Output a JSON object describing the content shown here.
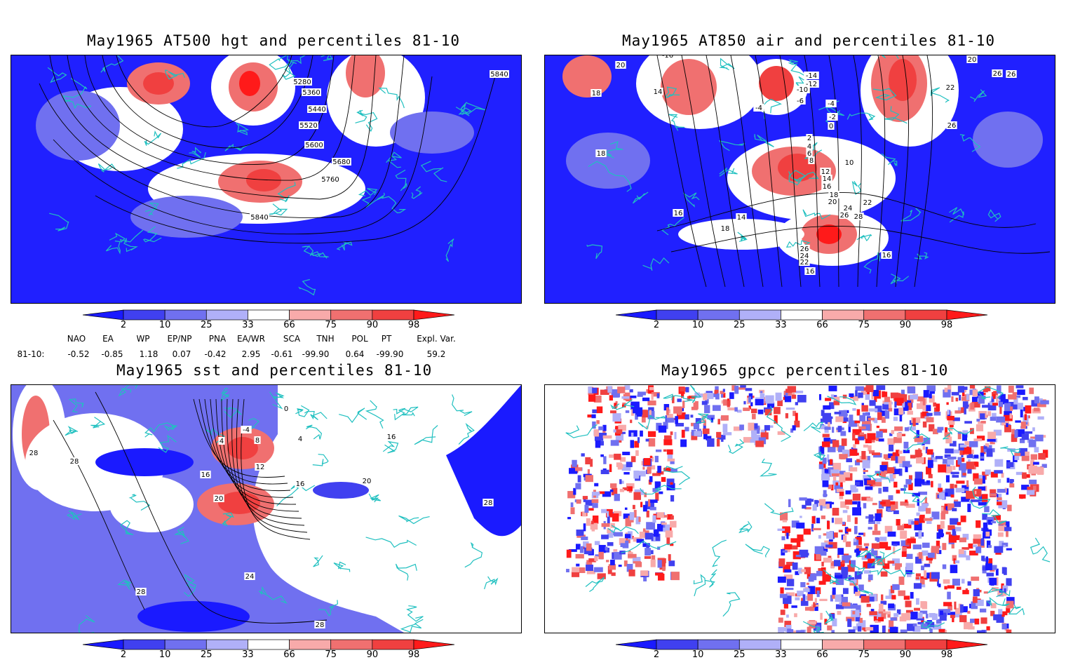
{
  "panels": [
    {
      "id": "hgt",
      "title": "May1965 AT500 hgt and percentiles 81-10",
      "contour_labels": [
        "5280",
        "5360",
        "5440",
        "5520",
        "5600",
        "5680",
        "5760",
        "5840",
        "5840"
      ]
    },
    {
      "id": "air",
      "title": "May1965 AT850 air and percentiles 81-10",
      "contour_labels": [
        "-16",
        "20",
        "18",
        "14",
        "18",
        "16",
        "14",
        "18",
        "16",
        "-4",
        "-14",
        "-12",
        "-10",
        "-6",
        "-4",
        "-2",
        "0",
        "2",
        "4",
        "6",
        "8",
        "10",
        "12",
        "14",
        "16",
        "18",
        "20",
        "22",
        "24",
        "26",
        "28",
        "26",
        "24",
        "22",
        "16",
        "20",
        "26",
        "22",
        "26",
        "26",
        "18"
      ]
    },
    {
      "id": "sst",
      "title": "May1965 sst and percentiles 81-10",
      "contour_labels": [
        "28",
        "28",
        "0",
        "4",
        "8",
        "-4",
        "12",
        "16",
        "16",
        "20",
        "20",
        "24",
        "28",
        "28",
        "16",
        "4",
        "28"
      ]
    },
    {
      "id": "gpcc",
      "title": "May1965 gpcc percentiles 81-10",
      "contour_labels": []
    }
  ],
  "colorbar": {
    "labels": [
      "2",
      "10",
      "25",
      "33",
      "66",
      "75",
      "90",
      "98"
    ],
    "colors": [
      "#1a1aff",
      "#4040f0",
      "#7070f0",
      "#b0b0f8",
      "#ffffff",
      "#f8aaaa",
      "#f07070",
      "#f04040",
      "#ff1a1a"
    ]
  },
  "indices": {
    "headers": [
      "NAO",
      "EA",
      "WP",
      "EP/NP",
      "PNA",
      "EA/WR",
      "SCA",
      "TNH",
      "POL",
      "PT",
      "Expl. Var."
    ],
    "row_label": "81-10:",
    "values": [
      "-0.52",
      "-0.85",
      "1.18",
      "0.07",
      "-0.42",
      "2.95",
      "-0.61",
      "-99.90",
      "0.64",
      "-99.90",
      "59.2"
    ]
  },
  "colors": {
    "coast": "#20c0c0",
    "anom_blue": "#2020ff",
    "anom_red": "#f02020",
    "frame": "#000000"
  }
}
